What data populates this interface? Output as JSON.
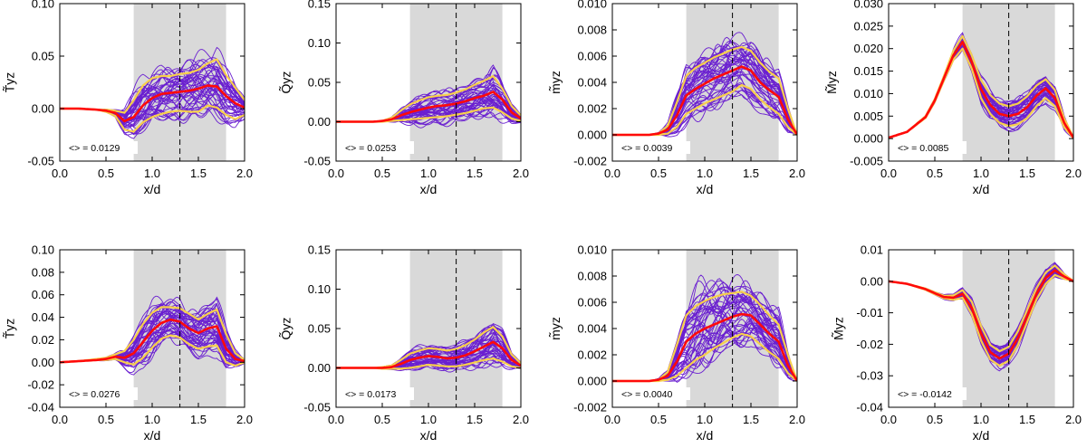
{
  "colors": {
    "ensemble": "#6a1fd0",
    "mean": "#ff0a0a",
    "band": "#f7cf4b",
    "shade": "#d9d9d9",
    "axis": "#000000"
  },
  "chart_data": [
    {
      "type": "line",
      "ylabel": "T̃yz",
      "xlabel": "x/d",
      "xlim": [
        0.0,
        2.0
      ],
      "ylim": [
        -0.05,
        0.1
      ],
      "xticks": [
        "0.0",
        "0.5",
        "1.0",
        "1.5",
        "2.0"
      ],
      "yticks": [
        "-0.05",
        "0.00",
        "0.05",
        "0.10"
      ],
      "shaded_region": [
        0.8,
        1.8
      ],
      "vline": 1.3,
      "annotation": "<> = 0.0129",
      "series": [
        {
          "x": [
            0.0,
            0.2,
            0.4,
            0.5,
            0.6,
            0.7,
            0.8,
            0.9,
            1.0,
            1.1,
            1.2,
            1.3,
            1.4,
            1.5,
            1.6,
            1.7,
            1.8,
            1.9,
            2.0
          ],
          "mean": [
            0.0,
            0.0,
            -0.001,
            -0.002,
            -0.004,
            -0.012,
            -0.008,
            0.003,
            0.01,
            0.014,
            0.015,
            0.016,
            0.017,
            0.019,
            0.022,
            0.021,
            0.012,
            0.005,
            0.001
          ],
          "upper": [
            0.0,
            0.0,
            -0.001,
            -0.001,
            -0.002,
            -0.004,
            0.008,
            0.022,
            0.029,
            0.031,
            0.031,
            0.033,
            0.034,
            0.037,
            0.043,
            0.047,
            0.032,
            0.02,
            0.008
          ],
          "lower": [
            0.0,
            0.0,
            -0.001,
            -0.003,
            -0.007,
            -0.02,
            -0.022,
            -0.013,
            -0.008,
            -0.005,
            -0.003,
            -0.002,
            -0.003,
            -0.003,
            0.003,
            0.001,
            -0.006,
            -0.01,
            -0.006
          ]
        }
      ]
    },
    {
      "type": "line",
      "ylabel": "Q̃yz",
      "xlabel": "x/d",
      "xlim": [
        0.0,
        2.0
      ],
      "ylim": [
        -0.05,
        0.15
      ],
      "xticks": [
        "0.0",
        "0.5",
        "1.0",
        "1.5",
        "2.0"
      ],
      "yticks": [
        "-0.05",
        "0.00",
        "0.05",
        "0.10",
        "0.15"
      ],
      "shaded_region": [
        0.8,
        1.8
      ],
      "vline": 1.3,
      "annotation": "<> = 0.0253",
      "series": [
        {
          "x": [
            0.0,
            0.2,
            0.4,
            0.5,
            0.6,
            0.7,
            0.8,
            0.9,
            1.0,
            1.1,
            1.2,
            1.3,
            1.4,
            1.5,
            1.6,
            1.7,
            1.8,
            1.9,
            2.0
          ],
          "mean": [
            0.0,
            0.0,
            0.0,
            0.001,
            0.003,
            0.008,
            0.012,
            0.015,
            0.018,
            0.02,
            0.021,
            0.023,
            0.026,
            0.03,
            0.033,
            0.038,
            0.028,
            0.012,
            0.004
          ],
          "upper": [
            0.0,
            0.0,
            0.0,
            0.001,
            0.005,
            0.014,
            0.022,
            0.027,
            0.031,
            0.033,
            0.034,
            0.037,
            0.041,
            0.047,
            0.052,
            0.058,
            0.042,
            0.02,
            0.008
          ],
          "lower": [
            0.0,
            0.0,
            0.0,
            0.0,
            0.001,
            0.002,
            0.003,
            0.004,
            0.005,
            0.006,
            0.007,
            0.009,
            0.011,
            0.014,
            0.017,
            0.018,
            0.012,
            0.004,
            0.001
          ]
        }
      ]
    },
    {
      "type": "line",
      "ylabel": "m̃yz",
      "xlabel": "x/d",
      "xlim": [
        0.0,
        2.0
      ],
      "ylim": [
        -0.002,
        0.01
      ],
      "xticks": [
        "0.0",
        "0.5",
        "1.0",
        "1.5",
        "2.0"
      ],
      "yticks": [
        "-0.002",
        "0.000",
        "0.002",
        "0.004",
        "0.006",
        "0.008",
        "0.010"
      ],
      "shaded_region": [
        0.8,
        1.8
      ],
      "vline": 1.3,
      "annotation": "<> = 0.0039",
      "series": [
        {
          "x": [
            0.0,
            0.2,
            0.4,
            0.5,
            0.6,
            0.7,
            0.8,
            0.9,
            1.0,
            1.1,
            1.2,
            1.3,
            1.4,
            1.5,
            1.6,
            1.7,
            1.8,
            1.9,
            2.0
          ],
          "mean": [
            0.0,
            0.0,
            0.0,
            0.0001,
            0.0004,
            0.0015,
            0.003,
            0.0035,
            0.0039,
            0.0043,
            0.0046,
            0.0049,
            0.0052,
            0.0049,
            0.004,
            0.0034,
            0.0029,
            0.0012,
            0.0
          ],
          "upper": [
            0.0,
            0.0,
            0.0,
            0.0001,
            0.0007,
            0.0025,
            0.0045,
            0.0051,
            0.0055,
            0.0059,
            0.0062,
            0.0065,
            0.0067,
            0.0064,
            0.0055,
            0.0048,
            0.0043,
            0.002,
            0.0
          ],
          "lower": [
            0.0,
            0.0,
            0.0,
            0.0,
            0.0001,
            0.0006,
            0.0016,
            0.002,
            0.0024,
            0.0027,
            0.003,
            0.0033,
            0.0038,
            0.0035,
            0.0027,
            0.0021,
            0.0016,
            0.0006,
            0.0
          ]
        }
      ]
    },
    {
      "type": "line",
      "ylabel": "M̃yz",
      "xlabel": "x/d",
      "xlim": [
        0.0,
        2.0
      ],
      "ylim": [
        -0.005,
        0.03
      ],
      "xticks": [
        "0.0",
        "0.5",
        "1.0",
        "1.5",
        "2.0"
      ],
      "yticks": [
        "-0.005",
        "0.000",
        "0.005",
        "0.010",
        "0.015",
        "0.020",
        "0.025",
        "0.030"
      ],
      "shaded_region": [
        0.8,
        1.8
      ],
      "vline": 1.3,
      "annotation": "<> = 0.0085",
      "series": [
        {
          "x": [
            0.0,
            0.2,
            0.4,
            0.5,
            0.6,
            0.7,
            0.8,
            0.9,
            1.0,
            1.1,
            1.2,
            1.3,
            1.4,
            1.5,
            1.6,
            1.7,
            1.8,
            1.9,
            2.0
          ],
          "mean": [
            0.0002,
            0.0015,
            0.0048,
            0.0085,
            0.0135,
            0.0185,
            0.0215,
            0.017,
            0.011,
            0.0075,
            0.0055,
            0.005,
            0.0055,
            0.007,
            0.0095,
            0.0112,
            0.009,
            0.0035,
            0.0002
          ],
          "upper": [
            0.0002,
            0.0015,
            0.005,
            0.0088,
            0.014,
            0.0195,
            0.0228,
            0.0185,
            0.013,
            0.0097,
            0.0078,
            0.0072,
            0.0078,
            0.0094,
            0.0118,
            0.0132,
            0.0108,
            0.0045,
            0.0003
          ],
          "lower": [
            0.0002,
            0.0015,
            0.0046,
            0.0082,
            0.013,
            0.0175,
            0.02,
            0.0155,
            0.009,
            0.0055,
            0.0035,
            0.0028,
            0.0032,
            0.0046,
            0.0072,
            0.009,
            0.0072,
            0.0025,
            0.0001
          ]
        }
      ]
    },
    {
      "type": "line",
      "ylabel": "T̃yz",
      "xlabel": "x/d",
      "xlim": [
        0.0,
        2.0
      ],
      "ylim": [
        -0.04,
        0.1
      ],
      "xticks": [
        "0.0",
        "0.5",
        "1.0",
        "1.5",
        "2.0"
      ],
      "yticks": [
        "-0.04",
        "-0.02",
        "0.00",
        "0.02",
        "0.04",
        "0.06",
        "0.08",
        "0.10"
      ],
      "shaded_region": [
        0.8,
        1.8
      ],
      "vline": 1.3,
      "annotation": "<> = 0.0276",
      "series": [
        {
          "x": [
            0.0,
            0.2,
            0.4,
            0.5,
            0.6,
            0.7,
            0.8,
            0.9,
            1.0,
            1.1,
            1.2,
            1.3,
            1.4,
            1.5,
            1.6,
            1.7,
            1.8,
            1.9,
            2.0
          ],
          "mean": [
            0.0,
            0.001,
            0.002,
            0.003,
            0.005,
            0.004,
            0.008,
            0.018,
            0.028,
            0.035,
            0.038,
            0.036,
            0.03,
            0.026,
            0.03,
            0.032,
            0.012,
            0.003,
            0.001
          ],
          "upper": [
            0.0,
            0.001,
            0.003,
            0.004,
            0.007,
            0.01,
            0.02,
            0.034,
            0.044,
            0.049,
            0.049,
            0.048,
            0.043,
            0.038,
            0.043,
            0.047,
            0.025,
            0.008,
            0.002
          ],
          "lower": [
            0.0,
            0.001,
            0.002,
            0.002,
            0.003,
            0.0,
            -0.002,
            0.004,
            0.013,
            0.021,
            0.024,
            0.022,
            0.016,
            0.012,
            0.014,
            0.015,
            0.0,
            -0.003,
            0.0
          ]
        }
      ]
    },
    {
      "type": "line",
      "ylabel": "Q̃yz",
      "xlabel": "x/d",
      "xlim": [
        0.0,
        2.0
      ],
      "ylim": [
        -0.05,
        0.15
      ],
      "xticks": [
        "0.0",
        "0.5",
        "1.0",
        "1.5",
        "2.0"
      ],
      "yticks": [
        "-0.05",
        "0.00",
        "0.05",
        "0.10",
        "0.15"
      ],
      "shaded_region": [
        0.8,
        1.8
      ],
      "vline": 1.3,
      "annotation": "<> = 0.0173",
      "series": [
        {
          "x": [
            0.0,
            0.2,
            0.4,
            0.5,
            0.6,
            0.7,
            0.8,
            0.9,
            1.0,
            1.1,
            1.2,
            1.3,
            1.4,
            1.5,
            1.6,
            1.7,
            1.8,
            1.9,
            2.0
          ],
          "mean": [
            0.0,
            0.0,
            0.0,
            0.0,
            0.001,
            0.005,
            0.01,
            0.013,
            0.015,
            0.014,
            0.012,
            0.013,
            0.016,
            0.021,
            0.027,
            0.033,
            0.025,
            0.01,
            0.003
          ],
          "upper": [
            0.0,
            0.0,
            0.0,
            0.001,
            0.003,
            0.01,
            0.018,
            0.022,
            0.025,
            0.024,
            0.022,
            0.024,
            0.029,
            0.036,
            0.045,
            0.052,
            0.04,
            0.017,
            0.006
          ],
          "lower": [
            0.0,
            0.0,
            0.0,
            -0.001,
            -0.001,
            -0.001,
            0.0,
            0.002,
            0.004,
            0.003,
            0.002,
            0.002,
            0.004,
            0.007,
            0.01,
            0.012,
            0.008,
            0.002,
            0.0
          ]
        }
      ]
    },
    {
      "type": "line",
      "ylabel": "m̃yz",
      "xlabel": "x/d",
      "xlim": [
        0.0,
        2.0
      ],
      "ylim": [
        -0.002,
        0.01
      ],
      "xticks": [
        "0.0",
        "0.5",
        "1.0",
        "1.5",
        "2.0"
      ],
      "yticks": [
        "-0.002",
        "0.000",
        "0.002",
        "0.004",
        "0.006",
        "0.008",
        "0.010"
      ],
      "shaded_region": [
        0.8,
        1.8
      ],
      "vline": 1.3,
      "annotation": "<> = 0.0040",
      "series": [
        {
          "x": [
            0.0,
            0.2,
            0.4,
            0.5,
            0.6,
            0.7,
            0.8,
            0.9,
            1.0,
            1.1,
            1.2,
            1.3,
            1.4,
            1.5,
            1.6,
            1.7,
            1.8,
            1.9,
            2.0
          ],
          "mean": [
            0.0,
            0.0,
            0.0,
            0.0001,
            0.0004,
            0.0015,
            0.003,
            0.0036,
            0.004,
            0.0043,
            0.0046,
            0.0049,
            0.0051,
            0.005,
            0.0043,
            0.0036,
            0.003,
            0.0012,
            0.0
          ],
          "upper": [
            0.0,
            0.0,
            0.0,
            0.0001,
            0.0007,
            0.0028,
            0.005,
            0.0057,
            0.0061,
            0.0064,
            0.0066,
            0.0067,
            0.0068,
            0.0065,
            0.0058,
            0.005,
            0.0043,
            0.002,
            0.0
          ],
          "lower": [
            0.0,
            0.0,
            0.0,
            0.0,
            0.0001,
            0.0004,
            0.001,
            0.0016,
            0.002,
            0.0025,
            0.0029,
            0.0033,
            0.0036,
            0.0034,
            0.0028,
            0.0022,
            0.0017,
            0.0006,
            0.0
          ]
        }
      ]
    },
    {
      "type": "line",
      "ylabel": "M̃yz",
      "xlabel": "x/d",
      "xlim": [
        0.0,
        2.0
      ],
      "ylim": [
        -0.04,
        0.01
      ],
      "xticks": [
        "0.0",
        "0.5",
        "1.0",
        "1.5",
        "2.0"
      ],
      "yticks": [
        "-0.04",
        "-0.03",
        "-0.02",
        "-0.01",
        "0.00",
        "0.01"
      ],
      "shaded_region": [
        0.8,
        1.8
      ],
      "vline": 1.3,
      "annotation": "<> = -0.0142",
      "series": [
        {
          "x": [
            0.0,
            0.2,
            0.4,
            0.5,
            0.6,
            0.7,
            0.8,
            0.9,
            1.0,
            1.1,
            1.2,
            1.3,
            1.4,
            1.5,
            1.6,
            1.7,
            1.8,
            1.9,
            2.0
          ],
          "mean": [
            0.0,
            -0.0008,
            -0.0025,
            -0.0038,
            -0.005,
            -0.0052,
            -0.004,
            -0.0085,
            -0.0165,
            -0.0225,
            -0.0245,
            -0.023,
            -0.018,
            -0.011,
            -0.004,
            0.001,
            0.0035,
            0.0015,
            0.0
          ],
          "upper": [
            0.0,
            -0.0008,
            -0.0023,
            -0.0035,
            -0.0046,
            -0.0045,
            -0.0028,
            -0.0065,
            -0.0142,
            -0.0202,
            -0.0222,
            -0.0208,
            -0.0158,
            -0.009,
            -0.0022,
            0.0028,
            0.005,
            0.0022,
            0.0001
          ],
          "lower": [
            0.0,
            -0.0008,
            -0.0027,
            -0.0041,
            -0.0054,
            -0.0059,
            -0.0052,
            -0.0105,
            -0.0188,
            -0.0248,
            -0.0268,
            -0.0252,
            -0.0202,
            -0.013,
            -0.0058,
            -0.0008,
            0.002,
            0.0008,
            0.0
          ]
        }
      ]
    }
  ]
}
